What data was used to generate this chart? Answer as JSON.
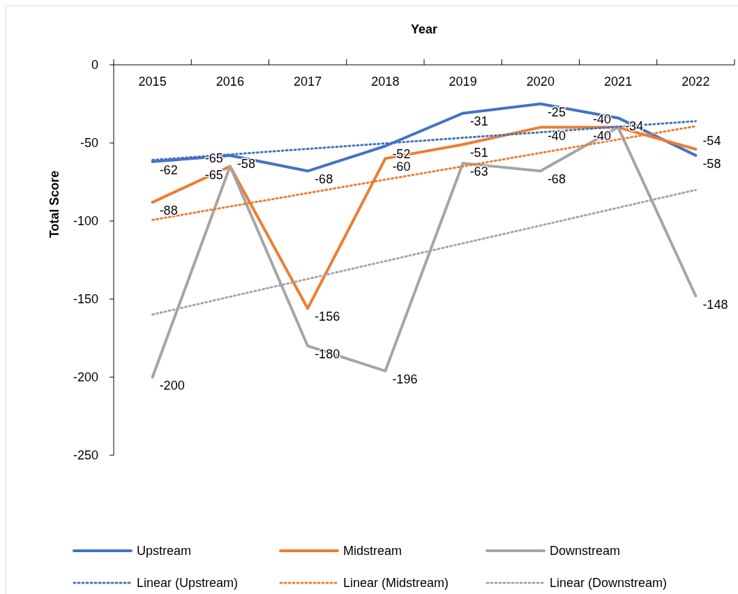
{
  "chart_data": {
    "type": "line",
    "xlabel": "Year",
    "ylabel": "Total Score",
    "categories": [
      "2015",
      "2016",
      "2017",
      "2018",
      "2019",
      "2020",
      "2021",
      "2022"
    ],
    "ylim": [
      -250,
      0
    ],
    "yticks": [
      -250,
      -200,
      -150,
      -100,
      -50,
      0
    ],
    "legend": "bottom",
    "marker": "none",
    "series": [
      {
        "name": "Upstream",
        "color": "#4472c4",
        "line_style": "solid",
        "values": [
          -62,
          -58,
          -68,
          -52,
          -31,
          -25,
          -34,
          -58
        ],
        "value_labels": [
          "-62",
          "-58",
          "-68",
          "-52",
          "-31",
          "-25",
          "-34",
          "-58"
        ]
      },
      {
        "name": "Midstream",
        "color": "#ed7d31",
        "line_style": "solid",
        "values": [
          -88,
          -65,
          -156,
          -60,
          -51,
          -40,
          -40,
          -54
        ],
        "value_labels": [
          "-88",
          "-65",
          "-156",
          "-60",
          "-51",
          "-40",
          "-40",
          "-54"
        ]
      },
      {
        "name": "Downstream",
        "color": "#a5a5a5",
        "line_style": "solid",
        "values": [
          -200,
          -65,
          -180,
          -196,
          -63,
          -68,
          -40,
          -148
        ],
        "value_labels": [
          "-200",
          "-65",
          "-180",
          "-196",
          "-63",
          "-68",
          "-40",
          "-148"
        ]
      },
      {
        "name": "Linear (Upstream)",
        "color": "#4472c4",
        "line_style": "dotted",
        "values": [
          -60.9,
          -57.4,
          -53.8,
          -50.3,
          -46.7,
          -43.2,
          -39.6,
          -36.1
        ]
      },
      {
        "name": "Linear (Midstream)",
        "color": "#ed7d31",
        "line_style": "dotted",
        "values": [
          -99.3,
          -90.7,
          -82.1,
          -73.5,
          -65.0,
          -56.4,
          -47.8,
          -39.3
        ]
      },
      {
        "name": "Linear (Downstream)",
        "color": "#a5a5a5",
        "line_style": "dotted",
        "values": [
          -159.9,
          -148.5,
          -137.1,
          -125.7,
          -114.3,
          -102.9,
          -91.5,
          -80.1
        ]
      }
    ]
  }
}
